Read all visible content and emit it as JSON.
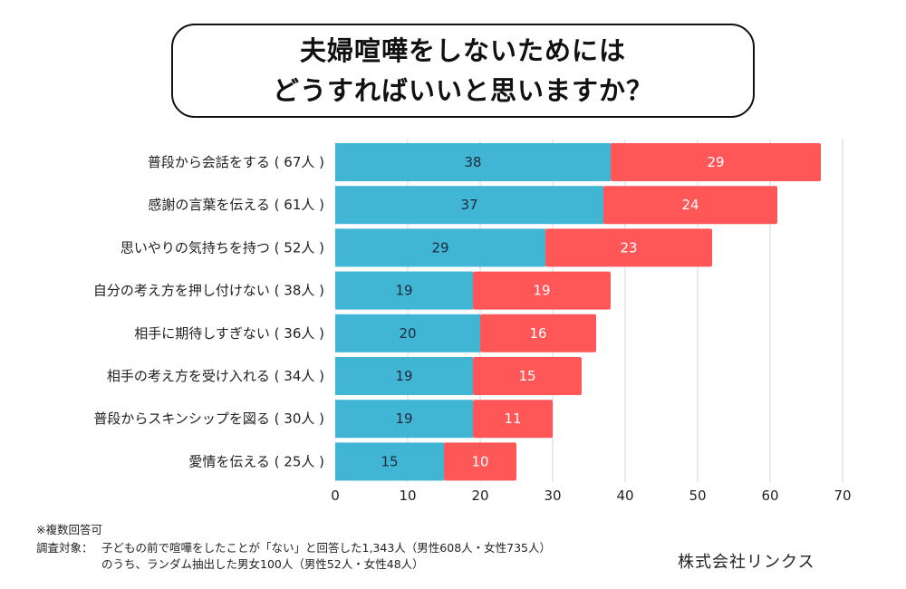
{
  "title": {
    "line1": "夫婦喧嘩をしないためには",
    "line2": "どうすればいいと思いますか？"
  },
  "chart_data": {
    "type": "bar",
    "orientation": "horizontal",
    "stacked": true,
    "title": "夫婦喧嘩をしないためにはどうすればいいと思いますか？",
    "xlabel": "",
    "ylabel": "",
    "categories": [
      "普段から会話をする（67人）",
      "感謝の言葉を伝える（61人）",
      "思いやりの気持ちを持つ（52人）",
      "自分の考え方を押し付けない（38人）",
      "相手に期待しすぎない（36人）",
      "相手の考え方を受け入れる（34人）",
      "普段からスキンシップを図る（30人）",
      "愛情を伝える（25人）"
    ],
    "category_labels": [
      "普段から会話をする ( 67人 )",
      "感謝の言葉を伝える ( 61人 )",
      "思いやりの気持ちを持つ ( 52人 )",
      "自分の考え方を押し付けない ( 38人 )",
      "相手に期待しすぎない ( 36人 )",
      "相手の考え方を受け入れる ( 34人 )",
      "普段からスキンシップを図る ( 30人 )",
      "愛情を伝える ( 25人 )"
    ],
    "series": [
      {
        "name": "series-blue",
        "color": "#41B5D4",
        "values": [
          38,
          37,
          29,
          19,
          20,
          19,
          19,
          15
        ]
      },
      {
        "name": "series-red",
        "color": "#FF5757",
        "values": [
          29,
          24,
          23,
          19,
          16,
          15,
          11,
          10
        ]
      }
    ],
    "xlim": [
      0,
      70
    ],
    "xticks": [
      0,
      10,
      20,
      30,
      40,
      50,
      60,
      70
    ],
    "grid": true,
    "legend": "none"
  },
  "notes": {
    "multiple": "※複数回答可",
    "target_label": "調査対象：",
    "target_line1": "子どもの前で喧嘩をしたことが「ない」と回答した1,343人（男性608人・女性735人）",
    "target_line2": "のうち、ランダム抽出した男女100人（男性52人・女性48人）"
  },
  "company": "株式会社リンクス"
}
